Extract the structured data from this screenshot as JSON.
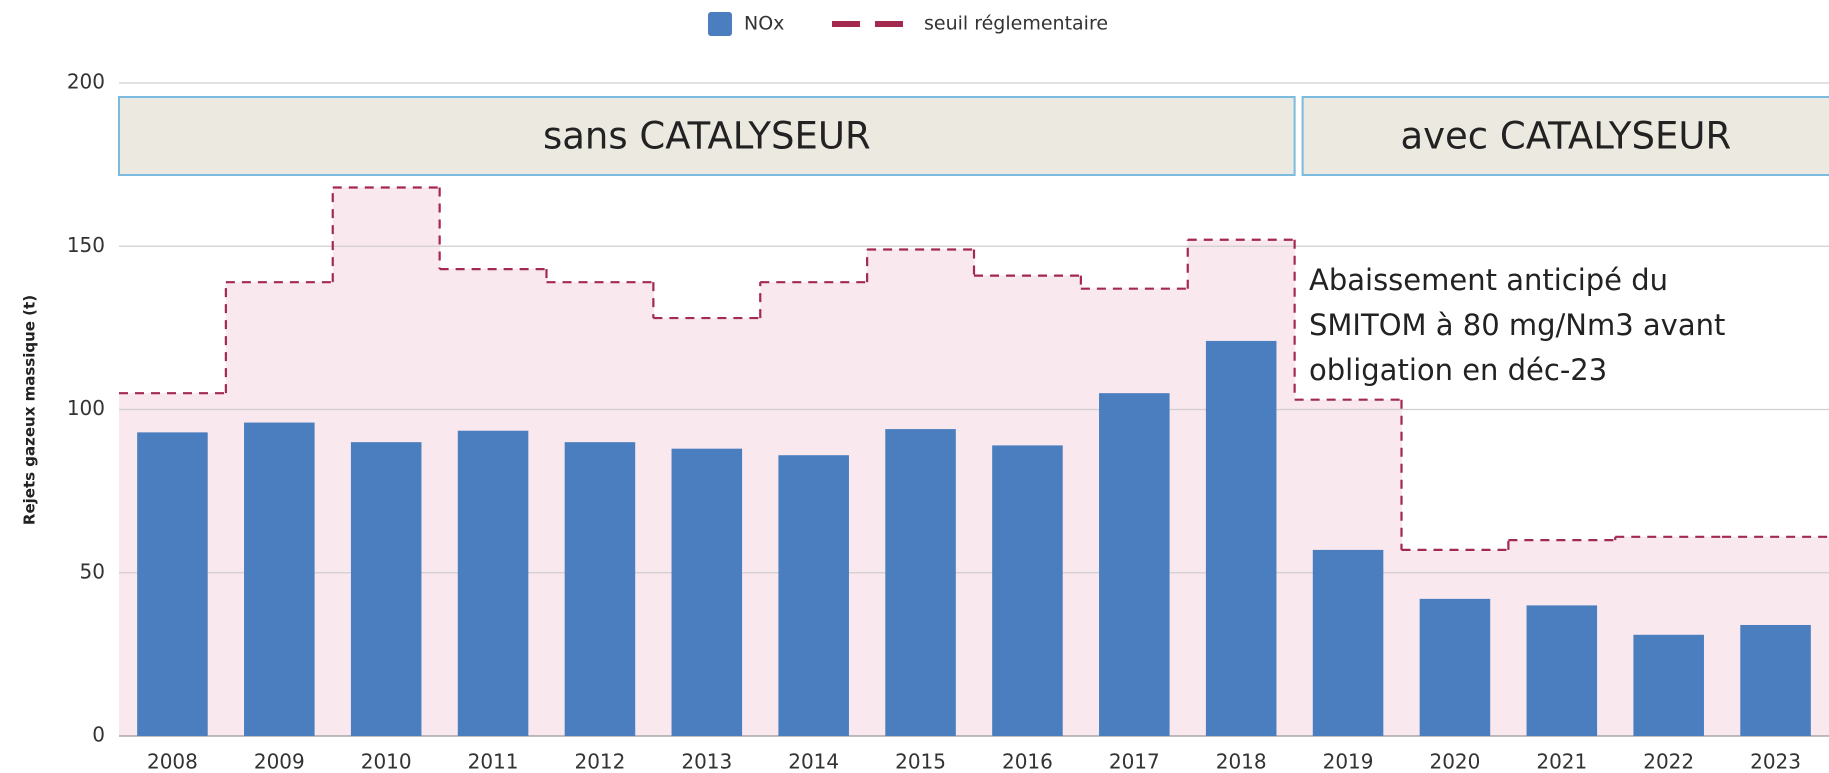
{
  "chart_data": {
    "type": "bar",
    "y_label": "Rejets gazeux massique (t)",
    "categories": [
      "2008",
      "2009",
      "2010",
      "2011",
      "2012",
      "2013",
      "2014",
      "2015",
      "2016",
      "2017",
      "2018",
      "2019",
      "2020",
      "2021",
      "2022",
      "2023"
    ],
    "series": [
      {
        "name": "NOx",
        "color": "#4a7ebf",
        "values": [
          93,
          96,
          90,
          93.5,
          90,
          88,
          86,
          94,
          89,
          105,
          121,
          57,
          42,
          40,
          31,
          34
        ]
      },
      {
        "name": "seuil réglementaire",
        "type": "step",
        "color": "#a3294f",
        "area_color": "#f9e8ee",
        "values": [
          105,
          139,
          168,
          143,
          139,
          128,
          139,
          149,
          141,
          137,
          152,
          103,
          57,
          60,
          61,
          61
        ]
      }
    ],
    "sections": [
      "sans CATALYSEUR",
      "avec CATALYSEUR"
    ],
    "annotation": [
      "Abaissement anticipé du",
      "SMITOM à 80 mg/Nm3 avant",
      "obligation en déc-23"
    ],
    "ylim": [
      0,
      200
    ],
    "yticks": [
      0,
      50,
      100,
      150,
      200
    ],
    "grid": true
  }
}
